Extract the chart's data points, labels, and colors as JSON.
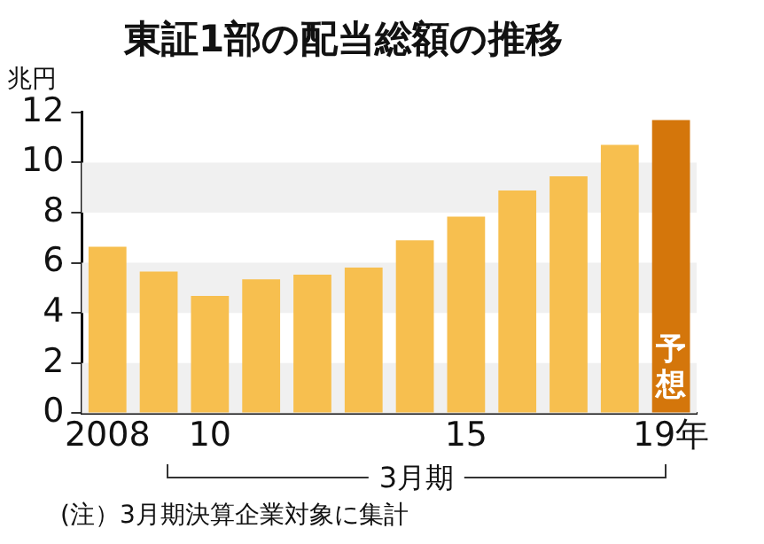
{
  "chart_data": {
    "type": "bar",
    "title": "東証1部の配当総額の推移",
    "ylabel": "兆円",
    "xlabel": "3月期",
    "categories": [
      "2008",
      null,
      "10",
      null,
      null,
      null,
      null,
      "15",
      null,
      null,
      null,
      "19年"
    ],
    "values": [
      6.64,
      5.65,
      4.68,
      5.34,
      5.53,
      5.81,
      6.9,
      7.84,
      8.88,
      9.45,
      10.7,
      11.69
    ],
    "colors": [
      "#f7bf4f",
      "#f7bf4f",
      "#f7bf4f",
      "#f7bf4f",
      "#f7bf4f",
      "#f7bf4f",
      "#f7bf4f",
      "#f7bf4f",
      "#f7bf4f",
      "#f7bf4f",
      "#f7bf4f",
      "#d4760b"
    ],
    "value_labels": [
      null,
      null,
      null,
      null,
      null,
      null,
      null,
      null,
      null,
      null,
      null,
      "予想"
    ],
    "ylim": [
      0,
      12
    ],
    "yticks": [
      0,
      2,
      4,
      6,
      8,
      10,
      12
    ],
    "bands": [
      {
        "axis": "y",
        "from": 0,
        "to": 2,
        "color": "#f0f0f0"
      },
      {
        "axis": "y",
        "from": 4,
        "to": 6,
        "color": "#f0f0f0"
      },
      {
        "axis": "y",
        "from": 8,
        "to": 10,
        "color": "#f0f0f0"
      }
    ],
    "grid": false,
    "legend": false,
    "annotations": [
      "(注）3月期決算企業対象に集計"
    ]
  }
}
